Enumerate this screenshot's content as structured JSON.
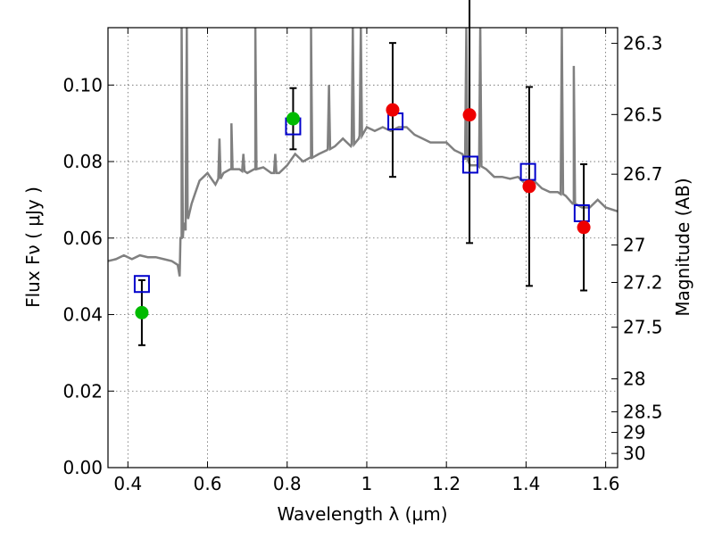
{
  "chart_data": {
    "type": "scatter",
    "title": "",
    "xlabel": "Wavelength  λ (μm)",
    "ylabel": "Flux  Fν  ( μJy )",
    "y2label": "Magnitude (AB)",
    "xlim": [
      0.35,
      1.63
    ],
    "ylim": [
      0.0,
      0.115
    ],
    "grid": true,
    "xticks": [
      0.4,
      0.6,
      0.8,
      1.0,
      1.2,
      1.4,
      1.6
    ],
    "xtick_labels": [
      "0.4",
      "0.6",
      "0.8",
      "1",
      "1.2",
      "1.4",
      "1.6"
    ],
    "yticks": [
      0.0,
      0.02,
      0.04,
      0.06,
      0.08,
      0.1
    ],
    "ytick_labels": [
      "0.00",
      "0.02",
      "0.04",
      "0.06",
      "0.08",
      "0.10"
    ],
    "magnitude_ticks": [
      {
        "label": "26.3",
        "flux": 0.1109
      },
      {
        "label": "26.5",
        "flux": 0.0923
      },
      {
        "label": "26.7",
        "flux": 0.0767
      },
      {
        "label": "27",
        "flux": 0.0582
      },
      {
        "label": "27.2",
        "flux": 0.0484
      },
      {
        "label": "27.5",
        "flux": 0.0367
      },
      {
        "label": "28",
        "flux": 0.0232
      },
      {
        "label": "28.5",
        "flux": 0.0146
      },
      {
        "label": "29",
        "flux": 0.0092
      },
      {
        "label": "30",
        "flux": 0.0037
      }
    ],
    "colors": {
      "model_spectrum": "#808080",
      "model_photometry": "#0000cc",
      "observed_green": "#00bb00",
      "observed_red": "#ee0000",
      "error_bars": "#000000"
    },
    "series": [
      {
        "role": "model-spectrum",
        "x": [
          0.35,
          0.37,
          0.39,
          0.41,
          0.43,
          0.45,
          0.47,
          0.49,
          0.51,
          0.525,
          0.53,
          0.535,
          0.54,
          0.545,
          0.55,
          0.56,
          0.57,
          0.58,
          0.59,
          0.6,
          0.62,
          0.64,
          0.66,
          0.68,
          0.7,
          0.72,
          0.74,
          0.76,
          0.78,
          0.8,
          0.82,
          0.84,
          0.86,
          0.88,
          0.9,
          0.92,
          0.94,
          0.96,
          0.98,
          1.0,
          1.02,
          1.04,
          1.06,
          1.08,
          1.1,
          1.12,
          1.14,
          1.16,
          1.18,
          1.2,
          1.22,
          1.24,
          1.26,
          1.28,
          1.3,
          1.32,
          1.34,
          1.36,
          1.38,
          1.4,
          1.42,
          1.44,
          1.46,
          1.48,
          1.5,
          1.52,
          1.54,
          1.56,
          1.58,
          1.6,
          1.63
        ],
        "y": [
          0.054,
          0.0545,
          0.0555,
          0.0545,
          0.0555,
          0.055,
          0.055,
          0.0545,
          0.054,
          0.053,
          0.05,
          0.06,
          0.064,
          0.062,
          0.067,
          0.069,
          0.072,
          0.075,
          0.076,
          0.077,
          0.074,
          0.077,
          0.078,
          0.078,
          0.077,
          0.078,
          0.0785,
          0.077,
          0.077,
          0.079,
          0.082,
          0.08,
          0.081,
          0.082,
          0.083,
          0.084,
          0.086,
          0.084,
          0.086,
          0.089,
          0.088,
          0.089,
          0.088,
          0.089,
          0.089,
          0.087,
          0.086,
          0.085,
          0.085,
          0.085,
          0.083,
          0.082,
          0.079,
          0.079,
          0.078,
          0.076,
          0.076,
          0.0755,
          0.076,
          0.074,
          0.075,
          0.073,
          0.072,
          0.072,
          0.071,
          0.069,
          0.068,
          0.068,
          0.07,
          0.068,
          0.067
        ],
        "emission_lines": [
          {
            "x": 0.535,
            "peak": 0.115
          },
          {
            "x": 0.548,
            "peak": 0.115
          },
          {
            "x": 0.63,
            "peak": 0.086
          },
          {
            "x": 0.66,
            "peak": 0.09
          },
          {
            "x": 0.69,
            "peak": 0.082
          },
          {
            "x": 0.72,
            "peak": 0.115
          },
          {
            "x": 0.77,
            "peak": 0.082
          },
          {
            "x": 0.86,
            "peak": 0.115
          },
          {
            "x": 0.905,
            "peak": 0.1
          },
          {
            "x": 0.965,
            "peak": 0.115
          },
          {
            "x": 0.985,
            "peak": 0.115
          },
          {
            "x": 1.25,
            "peak": 0.115
          },
          {
            "x": 1.285,
            "peak": 0.115
          },
          {
            "x": 1.49,
            "peak": 0.115
          },
          {
            "x": 1.52,
            "peak": 0.105
          }
        ]
      },
      {
        "role": "model-photometry",
        "x": [
          0.435,
          0.815,
          1.072,
          1.26,
          1.405,
          1.54
        ],
        "y": [
          0.048,
          0.0892,
          0.0905,
          0.0792,
          0.0773,
          0.0665
        ]
      },
      {
        "role": "observed-photometry",
        "x": [
          0.435,
          0.815,
          1.065,
          1.258,
          1.408,
          1.545
        ],
        "y": [
          0.0405,
          0.0912,
          0.0935,
          0.0922,
          0.0735,
          0.0628
        ],
        "yerr": [
          0.0085,
          0.008,
          0.0175,
          0.0335,
          0.026,
          0.0165
        ],
        "colors": [
          "#00bb00",
          "#00bb00",
          "#ee0000",
          "#ee0000",
          "#ee0000",
          "#ee0000"
        ]
      }
    ]
  }
}
